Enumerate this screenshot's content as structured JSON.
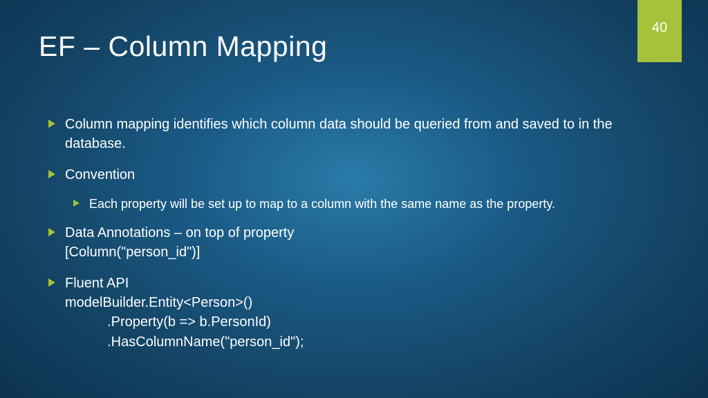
{
  "slide": {
    "title": "EF – Column Mapping",
    "page_number": "40",
    "accent_color": "#a6c23a",
    "text_color": "#ffffff",
    "bg_gradient_inner": "#2a7ba8",
    "bg_gradient_outer": "#0d3352",
    "title_fontsize": 41,
    "body_fontsize": 20,
    "sub_fontsize": 18,
    "bullets": {
      "b0": "Column mapping identifies which column data should be queried from and saved to in the database.",
      "b1": "Convention",
      "b1_sub": "Each property will be set up to map to a column with the same name as the property.",
      "b2": "Data Annotations – on top of property\n[Column(\"person_id\")]",
      "b3": "Fluent API\nmodelBuilder.Entity<Person>()\n           .Property(b => b.PersonId)\n           .HasColumnName(\"person_id\");"
    }
  }
}
